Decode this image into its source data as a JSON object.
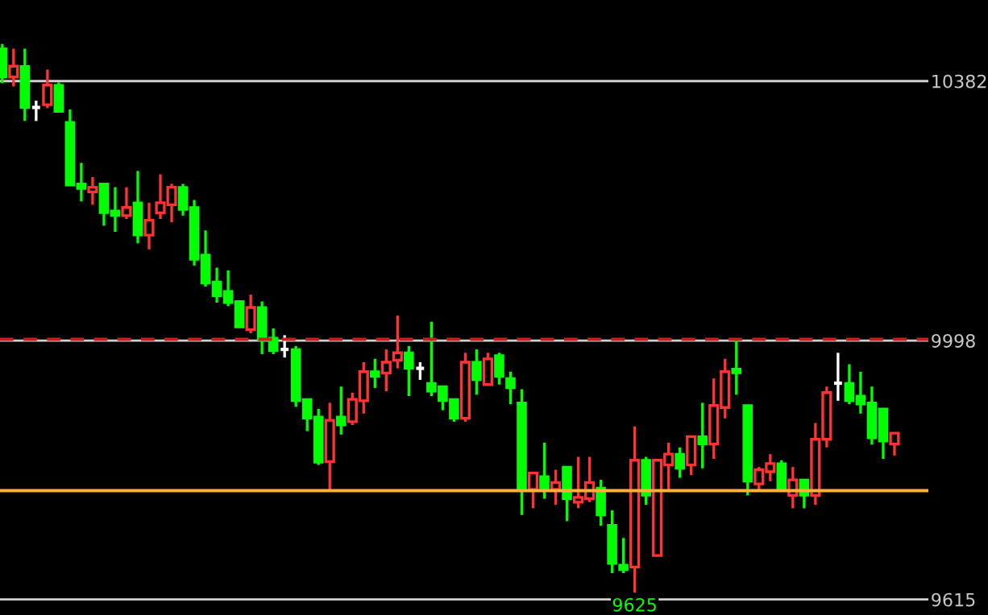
{
  "chart_data": {
    "type": "candlestick",
    "categories": [
      null,
      null,
      null,
      null,
      null,
      null,
      null,
      null,
      null,
      null,
      null,
      null,
      null,
      null,
      null,
      null,
      null,
      null,
      null,
      null,
      null,
      null,
      null,
      null,
      null,
      null,
      null,
      null,
      null,
      null,
      null,
      null,
      null,
      null,
      null,
      null,
      null,
      null,
      null,
      null,
      null,
      null,
      null,
      null,
      null,
      null,
      null,
      null,
      null,
      null,
      null,
      null,
      null,
      null,
      null,
      null,
      null,
      null,
      null,
      null,
      null,
      null,
      null,
      null,
      null,
      null,
      null,
      null,
      null,
      null,
      null,
      null,
      null,
      null,
      null,
      null,
      null,
      null,
      null,
      null
    ],
    "ohlc": [
      [
        10430,
        10437,
        10379,
        10388
      ],
      [
        10388,
        10430,
        10374,
        10404
      ],
      [
        10404,
        10430,
        10323,
        10343
      ],
      [
        10343,
        10353,
        10323,
        10343
      ],
      [
        10347,
        10399,
        10342,
        10376
      ],
      [
        10376,
        10380,
        10337,
        10337
      ],
      [
        10321,
        10340,
        10228,
        10228
      ],
      [
        10230,
        10261,
        10204,
        10223
      ],
      [
        10218,
        10240,
        10199,
        10225
      ],
      [
        10230,
        10230,
        10168,
        10187
      ],
      [
        10190,
        10225,
        10159,
        10183
      ],
      [
        10183,
        10225,
        10178,
        10195
      ],
      [
        10202,
        10249,
        10142,
        10154
      ],
      [
        10154,
        10202,
        10133,
        10176
      ],
      [
        10187,
        10244,
        10178,
        10202
      ],
      [
        10199,
        10230,
        10173,
        10225
      ],
      [
        10225,
        10230,
        10183,
        10192
      ],
      [
        10195,
        10206,
        10109,
        10118
      ],
      [
        10125,
        10161,
        10078,
        10083
      ],
      [
        10085,
        10106,
        10054,
        10064
      ],
      [
        10071,
        10102,
        10049,
        10054
      ],
      [
        10056,
        10056,
        10018,
        10018
      ],
      [
        10014,
        10066,
        10009,
        10047
      ],
      [
        10047,
        10056,
        9978,
        9999
      ],
      [
        10002,
        10016,
        9978,
        9983
      ],
      [
        9985,
        10006,
        9973,
        9985
      ],
      [
        9985,
        9990,
        9900,
        9909
      ],
      [
        9911,
        9911,
        9864,
        9883
      ],
      [
        9885,
        9897,
        9814,
        9818
      ],
      [
        9819,
        9906,
        9776,
        9880
      ],
      [
        9885,
        9930,
        9859,
        9873
      ],
      [
        9878,
        9921,
        9873,
        9911
      ],
      [
        9909,
        9966,
        9890,
        9952
      ],
      [
        9952,
        9971,
        9928,
        9945
      ],
      [
        9950,
        9985,
        9923,
        9966
      ],
      [
        9969,
        10035,
        9957,
        9980
      ],
      [
        9980,
        9990,
        9916,
        9957
      ],
      [
        9957,
        9966,
        9940,
        9957
      ],
      [
        9935,
        10026,
        9916,
        9923
      ],
      [
        9930,
        9930,
        9895,
        9909
      ],
      [
        9911,
        9911,
        9878,
        9883
      ],
      [
        9883,
        9980,
        9878,
        9966
      ],
      [
        9966,
        9985,
        9918,
        9940
      ],
      [
        9933,
        9980,
        9933,
        9971
      ],
      [
        9976,
        9980,
        9933,
        9945
      ],
      [
        9942,
        9952,
        9904,
        9928
      ],
      [
        9906,
        9926,
        9740,
        9776
      ],
      [
        9778,
        9802,
        9750,
        9802
      ],
      [
        9797,
        9847,
        9764,
        9778
      ],
      [
        9778,
        9807,
        9755,
        9788
      ],
      [
        9811,
        9811,
        9731,
        9764
      ],
      [
        9759,
        9826,
        9750,
        9766
      ],
      [
        9764,
        9826,
        9759,
        9788
      ],
      [
        9780,
        9792,
        9724,
        9740
      ],
      [
        9725,
        9747,
        9654,
        9668
      ],
      [
        9666,
        9706,
        9654,
        9659
      ],
      [
        9663,
        9871,
        9625,
        9821
      ],
      [
        9821,
        9826,
        9755,
        9769
      ],
      [
        9680,
        9821,
        9680,
        9821
      ],
      [
        9814,
        9847,
        9778,
        9830
      ],
      [
        9830,
        9840,
        9795,
        9809
      ],
      [
        9814,
        9856,
        9799,
        9856
      ],
      [
        9856,
        9906,
        9809,
        9845
      ],
      [
        9845,
        9942,
        9823,
        9902
      ],
      [
        9899,
        9971,
        9883,
        9952
      ],
      [
        9956,
        10001,
        9918,
        9950
      ],
      [
        9902,
        9902,
        9769,
        9790
      ],
      [
        9786,
        9811,
        9776,
        9807
      ],
      [
        9804,
        9830,
        9790,
        9816
      ],
      [
        9816,
        9821,
        9778,
        9778
      ],
      [
        9769,
        9811,
        9750,
        9792
      ],
      [
        9792,
        9792,
        9750,
        9769
      ],
      [
        9769,
        9876,
        9755,
        9852
      ],
      [
        9852,
        9930,
        9840,
        9921
      ],
      [
        9935,
        9980,
        9909,
        9935
      ],
      [
        9935,
        9963,
        9904,
        9909
      ],
      [
        9916,
        9952,
        9890,
        9904
      ],
      [
        9906,
        9930,
        9844,
        9854
      ],
      [
        9897,
        9897,
        9823,
        9849
      ],
      [
        9845,
        9861,
        9828,
        9861
      ]
    ],
    "colors": [
      "#00ff00",
      "#ff3333",
      "#00ff00",
      "#ffffff",
      "#ff3333",
      "#00ff00",
      "#00ff00",
      "#00ff00",
      "#ff3333",
      "#00ff00",
      "#00ff00",
      "#ff3333",
      "#00ff00",
      "#ff3333",
      "#ff3333",
      "#ff3333",
      "#00ff00",
      "#00ff00",
      "#00ff00",
      "#00ff00",
      "#00ff00",
      "#00ff00",
      "#ff3333",
      "#00ff00",
      "#00ff00",
      "#ffffff",
      "#00ff00",
      "#00ff00",
      "#00ff00",
      "#ff3333",
      "#00ff00",
      "#ff3333",
      "#ff3333",
      "#00ff00",
      "#ff3333",
      "#ff3333",
      "#00ff00",
      "#ffffff",
      "#00ff00",
      "#00ff00",
      "#00ff00",
      "#ff3333",
      "#00ff00",
      "#ff3333",
      "#00ff00",
      "#00ff00",
      "#00ff00",
      "#ff3333",
      "#00ff00",
      "#ff3333",
      "#00ff00",
      "#ff3333",
      "#ff3333",
      "#00ff00",
      "#00ff00",
      "#00ff00",
      "#ff3333",
      "#00ff00",
      "#ff3333",
      "#ff3333",
      "#00ff00",
      "#ff3333",
      "#00ff00",
      "#ff3333",
      "#ff3333",
      "#00ff00",
      "#00ff00",
      "#ff3333",
      "#ff3333",
      "#00ff00",
      "#ff3333",
      "#00ff00",
      "#ff3333",
      "#ff3333",
      "#ffffff",
      "#00ff00",
      "#00ff00",
      "#00ff00",
      "#00ff00",
      "#ff3333"
    ],
    "ylim": [
      9592,
      10502
    ],
    "yticks": [
      10382,
      9998,
      9615
    ],
    "grid": "y",
    "ref_lines": [
      {
        "axis": "y",
        "value": 10000,
        "color": "#c81e1e",
        "line_style": "dashed"
      },
      {
        "axis": "y",
        "value": 9776,
        "color": "#ffb03b",
        "line_style": "solid"
      }
    ],
    "annotations": [
      {
        "text": "9625",
        "y": 9625
      }
    ]
  }
}
